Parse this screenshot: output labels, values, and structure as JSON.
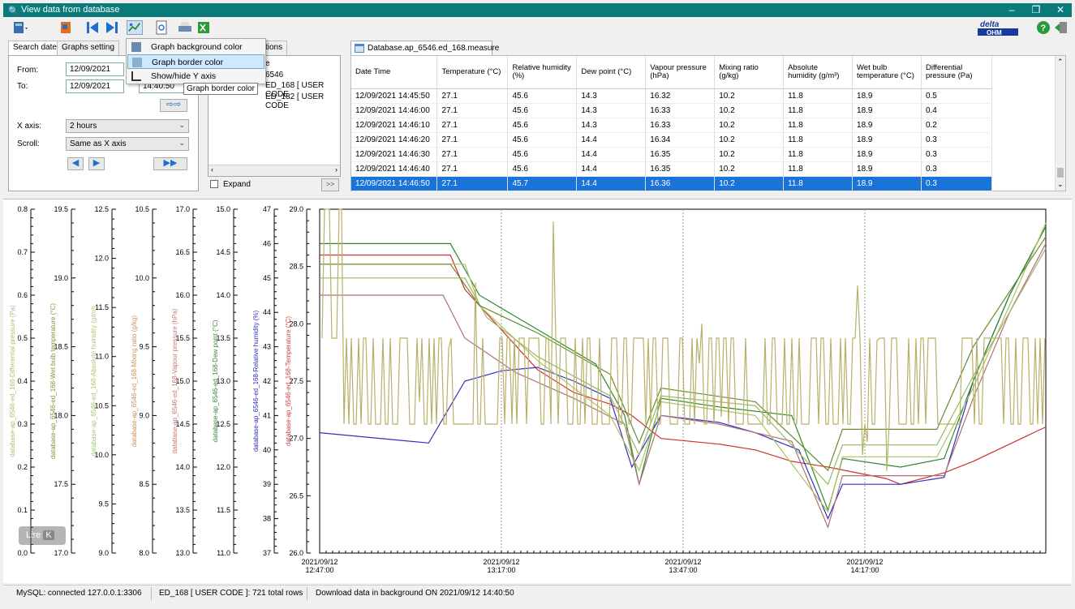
{
  "window": {
    "title": "View data from database",
    "min": "–",
    "max": "❐",
    "close": "✕"
  },
  "menu": {
    "items": [
      "Graph background color",
      "Graph border color",
      "Show/hide Y axis"
    ]
  },
  "tooltip": "Graph border color",
  "left_tabs": [
    "Search date",
    "Graphs setting"
  ],
  "mid_tab": "ctions",
  "search": {
    "from_label": "From:",
    "to_label": "To:",
    "from_date": "12/09/2021",
    "to_date": "12/09/2021",
    "to_time": "14:40:50",
    "xaxis_label": "X axis:",
    "xaxis_value": "2 hours",
    "scroll_label": "Scroll:",
    "scroll_value": "Same as X axis"
  },
  "tree": {
    "item0": "e",
    "item1": "6546",
    "item2": "ED_168 [ USER CODE",
    "item3": "ED_182 [ USER CODE",
    "expand": "Expand",
    "go": ">>"
  },
  "db_tab": "Database.ap_6546.ed_168.measure",
  "table": {
    "headers": [
      "Date Time",
      "Temperature (°C)",
      "Relative humidity (%)",
      "Dew point (°C)",
      "Vapour pressure (hPa)",
      "Mixing ratio (g/kg)",
      "Absolute humidity (g/m³)",
      "Wet bulb temperature (°C)",
      "Differential pressure (Pa)"
    ],
    "rows": [
      [
        "12/09/2021 14:45:50",
        "27.1",
        "45.6",
        "14.3",
        "16.32",
        "10.2",
        "11.8",
        "18.9",
        "0.5"
      ],
      [
        "12/09/2021 14:46:00",
        "27.1",
        "45.6",
        "14.3",
        "16.33",
        "10.2",
        "11.8",
        "18.9",
        "0.4"
      ],
      [
        "12/09/2021 14:46:10",
        "27.1",
        "45.6",
        "14.3",
        "16.33",
        "10.2",
        "11.8",
        "18.9",
        "0.2"
      ],
      [
        "12/09/2021 14:46:20",
        "27.1",
        "45.6",
        "14.4",
        "16.34",
        "10.2",
        "11.8",
        "18.9",
        "0.3"
      ],
      [
        "12/09/2021 14:46:30",
        "27.1",
        "45.6",
        "14.4",
        "16.35",
        "10.2",
        "11.8",
        "18.9",
        "0.3"
      ],
      [
        "12/09/2021 14:46:40",
        "27.1",
        "45.6",
        "14.4",
        "16.35",
        "10.2",
        "11.8",
        "18.9",
        "0.3"
      ],
      [
        "12/09/2021 14:46:50",
        "27.1",
        "45.7",
        "14.4",
        "16.36",
        "10.2",
        "11.8",
        "18.9",
        "0.3"
      ]
    ],
    "selected_row": 6
  },
  "status": {
    "mysql": "MySQL: connected 127.0.0.1:3306",
    "rows": "ED_168 [ USER CODE ]: 721 total rows",
    "download": "Download data in background ON  2021/09/12 14:40:50"
  },
  "logo": "delta OHM",
  "overlay": {
    "text": "Lire",
    "key": "K"
  },
  "chart_data": {
    "type": "line",
    "grid": "vertical dotted",
    "y_axes": [
      {
        "label": "database-ap_6546-ed_168-Differential pressure (Pa)",
        "color": "#b8b87a",
        "ticks": [
          "0.8",
          "0.7",
          "0.6",
          "0.5",
          "0.4",
          "0.3",
          "0.2",
          "0.1",
          "0.0"
        ],
        "range": [
          0.0,
          0.8
        ]
      },
      {
        "label": "database-ap_6546-ed_168-Wet bulb temperature (°C)",
        "color": "#7a9a3a",
        "ticks": [
          "19.5",
          "19.0",
          "18.5",
          "18.0",
          "17.5",
          "17.0"
        ],
        "range": [
          17.0,
          19.5
        ]
      },
      {
        "label": "database-ap_6546-ed_168-Absolute humidity (g/m³)",
        "color": "#a8c878",
        "ticks": [
          "12.5",
          "12.0",
          "11.5",
          "11.0",
          "10.5",
          "10.0",
          "9.5",
          "9.0"
        ],
        "range": [
          9.0,
          12.5
        ]
      },
      {
        "label": "database-ap_6546-ed_168-Mixing ratio (g/kg)",
        "color": "#c89060",
        "ticks": [
          "10.5",
          "10.0",
          "9.5",
          "9.0",
          "8.5",
          "8.0"
        ],
        "range": [
          8.0,
          10.5
        ]
      },
      {
        "label": "database-ap_6546-ed_168-Vapour pressure (hPa)",
        "color": "#c87878",
        "ticks": [
          "17.0",
          "16.5",
          "16.0",
          "15.5",
          "15.0",
          "14.5",
          "14.0",
          "13.5",
          "13.0"
        ],
        "range": [
          13.0,
          17.0
        ]
      },
      {
        "label": "database-ap_6546-ed_168-Dew point (°C)",
        "color": "#3a8a3a",
        "ticks": [
          "15.0",
          "14.5",
          "14.0",
          "13.5",
          "13.0",
          "12.5",
          "12.0",
          "11.5",
          "11.0"
        ],
        "range": [
          11.0,
          15.0
        ]
      },
      {
        "label": "database-ap_6546-ed_168-Relative humidity (%)",
        "color": "#3030c0",
        "ticks": [
          "47",
          "46",
          "45",
          "44",
          "43",
          "42",
          "41",
          "40",
          "39",
          "38",
          "37"
        ],
        "range": [
          37,
          47
        ]
      },
      {
        "label": "database-ap_6546-ed_168-Temperature (°C)",
        "color": "#d04040",
        "ticks": [
          "29.0",
          "28.5",
          "28.0",
          "27.5",
          "27.0",
          "26.5",
          "26.0"
        ],
        "range": [
          26.0,
          29.0
        ]
      }
    ],
    "x_ticks": [
      [
        "2021/09/12",
        "12:47:00"
      ],
      [
        "2021/09/12",
        "13:17:00"
      ],
      [
        "2021/09/12",
        "13:47:00"
      ],
      [
        "2021/09/12",
        "14:17:00"
      ]
    ],
    "series": [
      {
        "name": "Temperature (°C)",
        "color": "#d03030",
        "axis": 7,
        "values": [
          [
            0,
            28.6
          ],
          [
            0.13,
            28.6
          ],
          [
            0.18,
            28.6
          ],
          [
            0.2,
            28.3
          ],
          [
            0.25,
            27.95
          ],
          [
            0.3,
            27.6
          ],
          [
            0.35,
            27.4
          ],
          [
            0.4,
            27.3
          ],
          [
            0.43,
            27.2
          ],
          [
            0.47,
            27.0
          ],
          [
            0.55,
            26.95
          ],
          [
            0.6,
            26.9
          ],
          [
            0.65,
            26.8
          ],
          [
            0.7,
            26.75
          ],
          [
            0.78,
            26.65
          ],
          [
            0.8,
            26.6
          ],
          [
            0.86,
            26.7
          ],
          [
            0.9,
            26.8
          ],
          [
            0.95,
            26.95
          ],
          [
            1.0,
            27.1
          ]
        ]
      },
      {
        "name": "Relative humidity (%)",
        "color": "#3030c0",
        "axis": 6,
        "values": [
          [
            0,
            40.5
          ],
          [
            0.15,
            40.2
          ],
          [
            0.2,
            42
          ],
          [
            0.25,
            42.3
          ],
          [
            0.3,
            42.4
          ],
          [
            0.35,
            42
          ],
          [
            0.4,
            41.5
          ],
          [
            0.43,
            39.5
          ],
          [
            0.47,
            41
          ],
          [
            0.55,
            40.8
          ],
          [
            0.6,
            40.5
          ],
          [
            0.66,
            40
          ],
          [
            0.7,
            38
          ],
          [
            0.72,
            39
          ],
          [
            0.8,
            39
          ],
          [
            0.86,
            39.2
          ],
          [
            0.9,
            42
          ],
          [
            0.95,
            44.5
          ],
          [
            1.0,
            46.5
          ]
        ]
      },
      {
        "name": "Dew point (°C)",
        "color": "#2a8a2a",
        "axis": 5,
        "values": [
          [
            0,
            14.6
          ],
          [
            0.18,
            14.6
          ],
          [
            0.22,
            14.0
          ],
          [
            0.3,
            13.6
          ],
          [
            0.38,
            13.2
          ],
          [
            0.42,
            12.6
          ],
          [
            0.44,
            11.8
          ],
          [
            0.47,
            12.8
          ],
          [
            0.55,
            12.7
          ],
          [
            0.65,
            12.6
          ],
          [
            0.7,
            11.5
          ],
          [
            0.72,
            12.1
          ],
          [
            0.8,
            12.0
          ],
          [
            0.86,
            12.1
          ],
          [
            0.9,
            13.0
          ],
          [
            0.95,
            14.0
          ],
          [
            1.0,
            14.8
          ]
        ]
      },
      {
        "name": "Vapour pressure (hPa)",
        "color": "#b07070",
        "axis": 4,
        "values": [
          [
            0,
            16.0
          ],
          [
            0.17,
            16.0
          ],
          [
            0.2,
            15.5
          ],
          [
            0.27,
            15.1
          ],
          [
            0.35,
            14.8
          ],
          [
            0.42,
            14.5
          ],
          [
            0.44,
            13.8
          ],
          [
            0.47,
            14.6
          ],
          [
            0.55,
            14.5
          ],
          [
            0.65,
            14.3
          ],
          [
            0.7,
            13.3
          ],
          [
            0.72,
            13.9
          ],
          [
            0.8,
            13.9
          ],
          [
            0.86,
            13.9
          ],
          [
            0.9,
            14.8
          ],
          [
            0.95,
            15.8
          ],
          [
            1.0,
            16.6
          ]
        ]
      },
      {
        "name": "Mixing ratio (g/kg)",
        "color": "#b0c060",
        "axis": 3,
        "values": [
          [
            0,
            10.1
          ],
          [
            0.2,
            10.1
          ],
          [
            0.22,
            9.8
          ],
          [
            0.3,
            9.4
          ],
          [
            0.4,
            9.0
          ],
          [
            0.44,
            8.6
          ],
          [
            0.47,
            9.1
          ],
          [
            0.6,
            9.0
          ],
          [
            0.7,
            8.3
          ],
          [
            0.72,
            8.7
          ],
          [
            0.85,
            8.7
          ],
          [
            0.9,
            9.2
          ],
          [
            1.0,
            10.4
          ]
        ]
      },
      {
        "name": "Absolute humidity (g/m³)",
        "color": "#98b860",
        "axis": 2,
        "values": [
          [
            0,
            11.8
          ],
          [
            0.2,
            11.8
          ],
          [
            0.23,
            11.4
          ],
          [
            0.3,
            11.0
          ],
          [
            0.4,
            10.6
          ],
          [
            0.44,
            10.0
          ],
          [
            0.47,
            10.6
          ],
          [
            0.6,
            10.5
          ],
          [
            0.7,
            9.7
          ],
          [
            0.72,
            10.1
          ],
          [
            0.85,
            10.1
          ],
          [
            0.9,
            10.8
          ],
          [
            1.0,
            12.1
          ]
        ]
      },
      {
        "name": "Wet bulb temperature (°C)",
        "color": "#6a8a30",
        "axis": 1,
        "values": [
          [
            0,
            19.1
          ],
          [
            0.18,
            19.1
          ],
          [
            0.22,
            18.8
          ],
          [
            0.3,
            18.6
          ],
          [
            0.4,
            18.3
          ],
          [
            0.44,
            17.8
          ],
          [
            0.47,
            18.2
          ],
          [
            0.6,
            18.1
          ],
          [
            0.7,
            17.6
          ],
          [
            0.72,
            17.9
          ],
          [
            0.85,
            17.9
          ],
          [
            0.9,
            18.5
          ],
          [
            1.0,
            19.3
          ]
        ]
      },
      {
        "name": "Differential pressure (Pa)",
        "color": "#b8b06a",
        "axis": 0,
        "values": "noise"
      }
    ]
  }
}
